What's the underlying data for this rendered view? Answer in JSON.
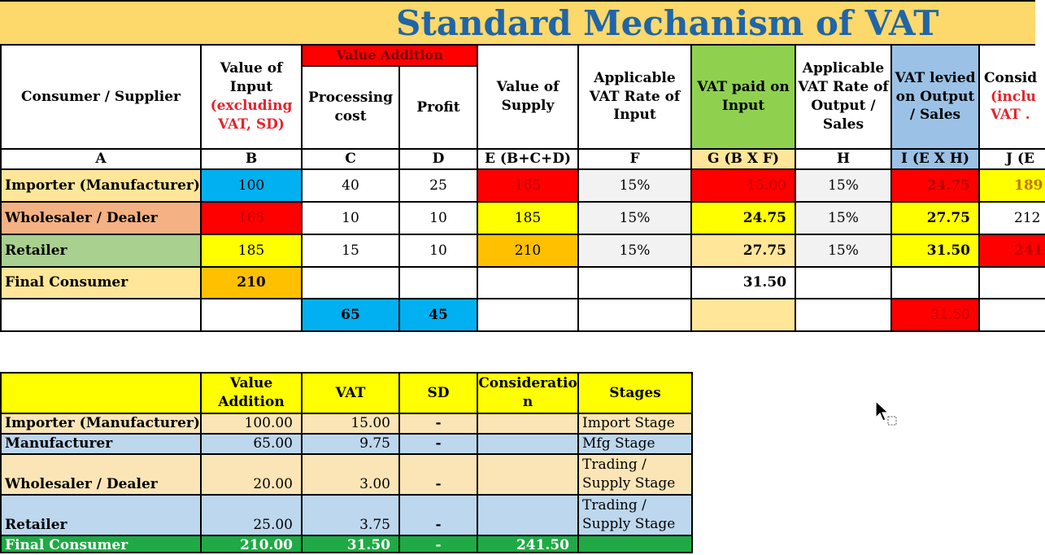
{
  "title": "Standard Mechanism of VAT",
  "table1": {
    "headers": {
      "consumer_supplier": "Consumer / Supplier",
      "value_input_line1": "Value of Input",
      "value_input_line2": "(excluding VAT, SD)",
      "value_addition": "Value Addition",
      "processing_cost": "Processing cost",
      "profit": "Profit",
      "value_supply": "Value of Supply",
      "vat_rate_input": "Applicable VAT Rate of Input",
      "vat_paid_input": "VAT paid on Input",
      "vat_rate_output": "Applicable VAT Rate of Output / Sales",
      "vat_levied": "VAT levied on Output / Sales",
      "consid_line1": "Consid",
      "consid_line2": "(inclu",
      "consid_line3": "VAT ."
    },
    "letters": [
      "A",
      "B",
      "C",
      "D",
      "E (B+C+D)",
      "F",
      "G (B X F)",
      "H",
      "I (E X H)",
      "J (E"
    ],
    "rows": [
      {
        "name": "Importer (Manufacturer)",
        "b": "100",
        "c": "40",
        "d": "25",
        "e": "165",
        "f": "15%",
        "g": "15.00",
        "h": "15%",
        "i": "24.75",
        "j": "189"
      },
      {
        "name": "Wholesaler / Dealer",
        "b": "165",
        "c": "10",
        "d": "10",
        "e": "185",
        "f": "15%",
        "g": "24.75",
        "h": "15%",
        "i": "27.75",
        "j": "212"
      },
      {
        "name": "Retailer",
        "b": "185",
        "c": "15",
        "d": "10",
        "e": "210",
        "f": "15%",
        "g": "27.75",
        "h": "15%",
        "i": "31.50",
        "j": "241"
      },
      {
        "name": "Final Consumer",
        "b": "210",
        "g": "31.50"
      }
    ],
    "totals": {
      "c": "65",
      "d": "45",
      "i": "31.50"
    }
  },
  "table2": {
    "headers": {
      "value_addition": "Value Addition",
      "vat": "VAT",
      "sd": "SD",
      "consideration": "Consideratio n",
      "stages": "Stages"
    },
    "rows": [
      {
        "name": "Importer (Manufacturer)",
        "va": "100.00",
        "vat": "15.00",
        "sd": "-",
        "cons": "",
        "stage": "Import Stage"
      },
      {
        "name": "Manufacturer",
        "va": "65.00",
        "vat": "9.75",
        "sd": "-",
        "cons": "",
        "stage": "Mfg Stage"
      },
      {
        "name": "Wholesaler / Dealer",
        "va": "20.00",
        "vat": "3.00",
        "sd": "-",
        "cons": "",
        "stage": "Trading / Supply Stage"
      },
      {
        "name": "Retailer",
        "va": "25.00",
        "vat": "3.75",
        "sd": "-",
        "cons": "",
        "stage": "Trading / Supply Stage"
      },
      {
        "name": "Final Consumer",
        "va": "210.00",
        "vat": "31.50",
        "sd": "-",
        "cons": "241.50",
        "stage": ""
      }
    ]
  }
}
